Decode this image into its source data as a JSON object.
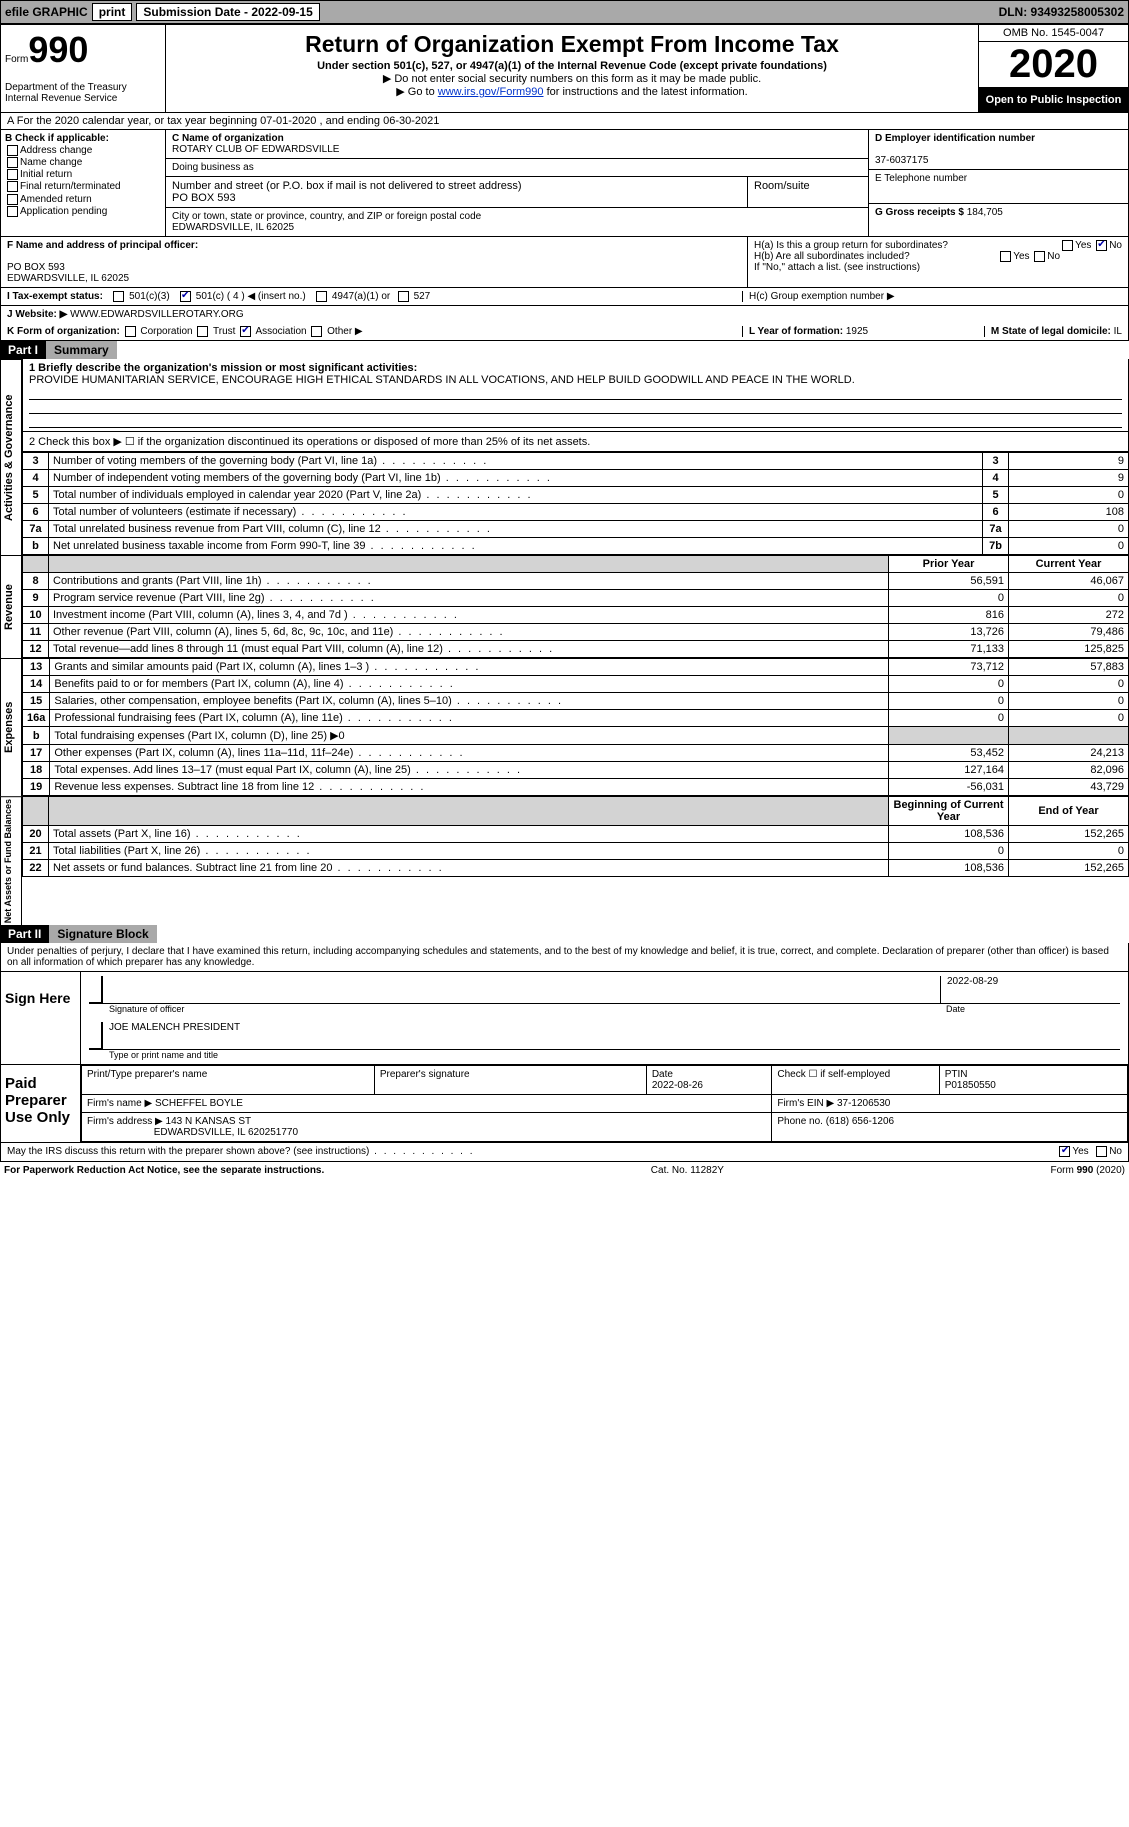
{
  "topbar": {
    "efile_label": "efile GRAPHIC",
    "print_btn": "print",
    "submission_label": "Submission Date - 2022-09-15",
    "dln_label": "DLN: 93493258005302"
  },
  "header": {
    "form_word": "Form",
    "form_num": "990",
    "dept": "Department of the Treasury",
    "irs": "Internal Revenue Service",
    "title": "Return of Organization Exempt From Income Tax",
    "subtitle": "Under section 501(c), 527, or 4947(a)(1) of the Internal Revenue Code (except private foundations)",
    "note1": "▶ Do not enter social security numbers on this form as it may be made public.",
    "note2_pre": "▶ Go to ",
    "note2_link": "www.irs.gov/Form990",
    "note2_post": " for instructions and the latest information.",
    "omb": "OMB No. 1545-0047",
    "year": "2020",
    "inspect": "Open to Public Inspection"
  },
  "lineA": "A For the 2020 calendar year, or tax year beginning 07-01-2020    , and ending 06-30-2021",
  "colB": {
    "hdr": "B Check if applicable:",
    "items": [
      "Address change",
      "Name change",
      "Initial return",
      "Final return/terminated",
      "Amended return",
      "Application pending"
    ]
  },
  "colC": {
    "name_lbl": "C Name of organization",
    "name_val": "ROTARY CLUB OF EDWARDSVILLE",
    "dba_lbl": "Doing business as",
    "street_lbl": "Number and street (or P.O. box if mail is not delivered to street address)",
    "street_val": "PO BOX 593",
    "room_lbl": "Room/suite",
    "city_lbl": "City or town, state or province, country, and ZIP or foreign postal code",
    "city_val": "EDWARDSVILLE, IL  62025"
  },
  "colD": {
    "ein_lbl": "D Employer identification number",
    "ein_val": "37-6037175",
    "tel_lbl": "E Telephone number",
    "gross_lbl": "G Gross receipts $",
    "gross_val": "184,705"
  },
  "rowF": {
    "f_lbl": "F Name and address of principal officer:",
    "f_addr1": "PO BOX 593",
    "f_addr2": "EDWARDSVILLE, IL  62025",
    "ha_lbl": "H(a)  Is this a group return for subordinates?",
    "ha_yes": "Yes",
    "ha_no": "No",
    "hb_lbl": "H(b)  Are all subordinates included?",
    "hb_yes": "Yes",
    "hb_no": "No",
    "hb_note": "If \"No,\" attach a list. (see instructions)"
  },
  "rowI": {
    "lbl": "I   Tax-exempt status:",
    "o1": "501(c)(3)",
    "o2": "501(c) ( 4 ) ◀ (insert no.)",
    "o3": "4947(a)(1) or",
    "o4": "527",
    "hc_lbl": "H(c)  Group exemption number ▶"
  },
  "rowJ": {
    "lbl": "J   Website: ▶",
    "val": "WWW.EDWARDSVILLEROTARY.ORG"
  },
  "rowK": {
    "lbl": "K Form of organization:",
    "corp": "Corporation",
    "trust": "Trust",
    "assoc": "Association",
    "other": "Other ▶",
    "l_lbl": "L Year of formation:",
    "l_val": "1925",
    "m_lbl": "M State of legal domicile:",
    "m_val": "IL"
  },
  "part1": {
    "hdr": "Part I",
    "title": "Summary",
    "line1_lbl": "1  Briefly describe the organization's mission or most significant activities:",
    "line1_val": "PROVIDE HUMANITARIAN SERVICE, ENCOURAGE HIGH ETHICAL STANDARDS IN ALL VOCATIONS, AND HELP BUILD GOODWILL AND PEACE IN THE WORLD.",
    "line2": "2   Check this box ▶ ☐  if the organization discontinued its operations or disposed of more than 25% of its net assets.",
    "govern_rows": [
      {
        "n": "3",
        "d": "Number of voting members of the governing body (Part VI, line 1a)",
        "k": "3",
        "v": "9"
      },
      {
        "n": "4",
        "d": "Number of independent voting members of the governing body (Part VI, line 1b)",
        "k": "4",
        "v": "9"
      },
      {
        "n": "5",
        "d": "Total number of individuals employed in calendar year 2020 (Part V, line 2a)",
        "k": "5",
        "v": "0"
      },
      {
        "n": "6",
        "d": "Total number of volunteers (estimate if necessary)",
        "k": "6",
        "v": "108"
      },
      {
        "n": "7a",
        "d": "Total unrelated business revenue from Part VIII, column (C), line 12",
        "k": "7a",
        "v": "0"
      },
      {
        "n": "b",
        "d": "Net unrelated business taxable income from Form 990-T, line 39",
        "k": "7b",
        "v": "0"
      }
    ],
    "col_prior": "Prior Year",
    "col_curr": "Current Year",
    "rev_rows": [
      {
        "n": "8",
        "d": "Contributions and grants (Part VIII, line 1h)",
        "p": "56,591",
        "c": "46,067"
      },
      {
        "n": "9",
        "d": "Program service revenue (Part VIII, line 2g)",
        "p": "0",
        "c": "0"
      },
      {
        "n": "10",
        "d": "Investment income (Part VIII, column (A), lines 3, 4, and 7d )",
        "p": "816",
        "c": "272"
      },
      {
        "n": "11",
        "d": "Other revenue (Part VIII, column (A), lines 5, 6d, 8c, 9c, 10c, and 11e)",
        "p": "13,726",
        "c": "79,486"
      },
      {
        "n": "12",
        "d": "Total revenue—add lines 8 through 11 (must equal Part VIII, column (A), line 12)",
        "p": "71,133",
        "c": "125,825"
      }
    ],
    "exp_rows": [
      {
        "n": "13",
        "d": "Grants and similar amounts paid (Part IX, column (A), lines 1–3 )",
        "p": "73,712",
        "c": "57,883"
      },
      {
        "n": "14",
        "d": "Benefits paid to or for members (Part IX, column (A), line 4)",
        "p": "0",
        "c": "0"
      },
      {
        "n": "15",
        "d": "Salaries, other compensation, employee benefits (Part IX, column (A), lines 5–10)",
        "p": "0",
        "c": "0"
      },
      {
        "n": "16a",
        "d": "Professional fundraising fees (Part IX, column (A), line 11e)",
        "p": "0",
        "c": "0"
      },
      {
        "n": "b",
        "d": "Total fundraising expenses (Part IX, column (D), line 25) ▶0",
        "p": "",
        "c": "",
        "shade": true
      },
      {
        "n": "17",
        "d": "Other expenses (Part IX, column (A), lines 11a–11d, 11f–24e)",
        "p": "53,452",
        "c": "24,213"
      },
      {
        "n": "18",
        "d": "Total expenses. Add lines 13–17 (must equal Part IX, column (A), line 25)",
        "p": "127,164",
        "c": "82,096"
      },
      {
        "n": "19",
        "d": "Revenue less expenses. Subtract line 18 from line 12",
        "p": "-56,031",
        "c": "43,729"
      }
    ],
    "na_hdr_p": "Beginning of Current Year",
    "na_hdr_c": "End of Year",
    "na_rows": [
      {
        "n": "20",
        "d": "Total assets (Part X, line 16)",
        "p": "108,536",
        "c": "152,265"
      },
      {
        "n": "21",
        "d": "Total liabilities (Part X, line 26)",
        "p": "0",
        "c": "0"
      },
      {
        "n": "22",
        "d": "Net assets or fund balances. Subtract line 21 from line 20",
        "p": "108,536",
        "c": "152,265"
      }
    ],
    "vlab_gov": "Activities & Governance",
    "vlab_rev": "Revenue",
    "vlab_exp": "Expenses",
    "vlab_na": "Net Assets or Fund Balances"
  },
  "part2": {
    "hdr": "Part II",
    "title": "Signature Block",
    "decl": "Under penalties of perjury, I declare that I have examined this return, including accompanying schedules and statements, and to the best of my knowledge and belief, it is true, correct, and complete. Declaration of preparer (other than officer) is based on all information of which preparer has any knowledge.",
    "sign_here": "Sign Here",
    "sig_officer_lbl": "Signature of officer",
    "sig_date": "2022-08-29",
    "date_lbl": "Date",
    "officer_name": "JOE MALENCH  PRESIDENT",
    "officer_name_lbl": "Type or print name and title",
    "paid_lbl": "Paid Preparer Use Only",
    "p_name_lbl": "Print/Type preparer's name",
    "p_sig_lbl": "Preparer's signature",
    "p_date_lbl": "Date",
    "p_date": "2022-08-26",
    "p_self_lbl": "Check ☐ if self-employed",
    "ptin_lbl": "PTIN",
    "ptin": "P01850550",
    "firm_name_lbl": "Firm's name    ▶",
    "firm_name": "SCHEFFEL BOYLE",
    "firm_ein_lbl": "Firm's EIN ▶",
    "firm_ein": "37-1206530",
    "firm_addr_lbl": "Firm's address ▶",
    "firm_addr": "143 N KANSAS ST",
    "firm_addr2": "EDWARDSVILLE, IL  620251770",
    "phone_lbl": "Phone no.",
    "phone": "(618) 656-1206",
    "discuss": "May the IRS discuss this return with the preparer shown above? (see instructions)",
    "d_yes": "Yes",
    "d_no": "No"
  },
  "footer": {
    "l": "For Paperwork Reduction Act Notice, see the separate instructions.",
    "c": "Cat. No. 11282Y",
    "r": "Form 990 (2020)"
  }
}
